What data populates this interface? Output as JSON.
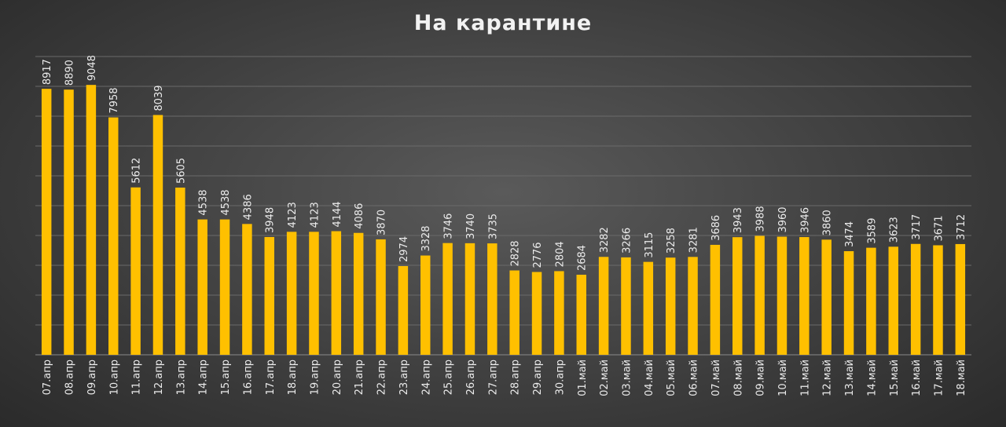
{
  "chart_data": {
    "type": "bar",
    "title": "На карантине",
    "xlabel": "",
    "ylabel": "",
    "ylim": [
      0,
      10000
    ],
    "grid": true,
    "bar_color": "#FFC000",
    "categories": [
      "07.апр",
      "08.апр",
      "09.апр",
      "10.апр",
      "11.апр",
      "12.апр",
      "13.апр",
      "14.апр",
      "15.апр",
      "16.апр",
      "17.апр",
      "18.апр",
      "19.апр",
      "20.апр",
      "21.апр",
      "22.апр",
      "23.апр",
      "24.апр",
      "25.апр",
      "26.апр",
      "27.апр",
      "28.апр",
      "29.апр",
      "30.апр",
      "01.май",
      "02.май",
      "03.май",
      "04.май",
      "05.май",
      "06.май",
      "07.май",
      "08.май",
      "09.май",
      "10.май",
      "11.май",
      "12.май",
      "13.май",
      "14.май",
      "15.май",
      "16.май",
      "17.май",
      "18.май"
    ],
    "values": [
      8917,
      8890,
      9048,
      7958,
      5612,
      8039,
      5605,
      4538,
      4538,
      4386,
      3948,
      4123,
      4123,
      4144,
      4086,
      3870,
      2974,
      3328,
      3746,
      3740,
      3735,
      2828,
      2776,
      2804,
      2684,
      3282,
      3266,
      3115,
      3258,
      3281,
      3686,
      3943,
      3988,
      3960,
      3946,
      3860,
      3474,
      3589,
      3623,
      3717,
      3671,
      3712
    ]
  }
}
